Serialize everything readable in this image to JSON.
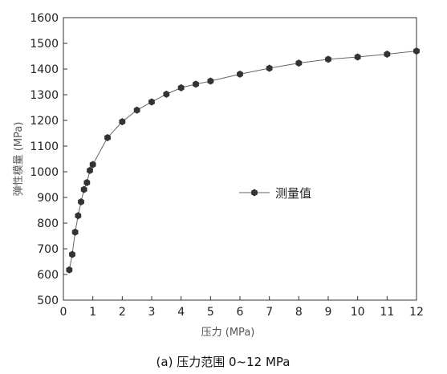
{
  "chart_data": {
    "type": "line",
    "xlabel": "压力 (MPa)",
    "ylabel": "弹性模量 (MPa)",
    "xlim": [
      0,
      12
    ],
    "ylim": [
      500,
      1600
    ],
    "x_ticks": [
      "0",
      "1",
      "2",
      "3",
      "4",
      "5",
      "6",
      "7",
      "8",
      "9",
      "10",
      "11",
      "12"
    ],
    "y_ticks": [
      "500",
      "600",
      "700",
      "800",
      "900",
      "1000",
      "1100",
      "1200",
      "1300",
      "1400",
      "1500",
      "1600"
    ],
    "grid": false,
    "legend": "right-middle",
    "series": [
      {
        "name": "测量值",
        "color": "#333333",
        "marker": "hexagon",
        "x": [
          0.2,
          0.3,
          0.4,
          0.5,
          0.6,
          0.7,
          0.8,
          0.9,
          1.0,
          1.5,
          2.0,
          2.5,
          3.0,
          3.5,
          4.0,
          4.5,
          5.0,
          6.0,
          7.0,
          8.0,
          9.0,
          10.0,
          11.0,
          12.0
        ],
        "y": [
          618,
          678,
          765,
          829,
          883,
          931,
          958,
          1005,
          1028,
          1133,
          1195,
          1240,
          1272,
          1302,
          1327,
          1341,
          1353,
          1380,
          1403,
          1423,
          1438,
          1447,
          1458,
          1470
        ]
      }
    ],
    "caption": "(a) 压力范围  0~12 MPa"
  }
}
